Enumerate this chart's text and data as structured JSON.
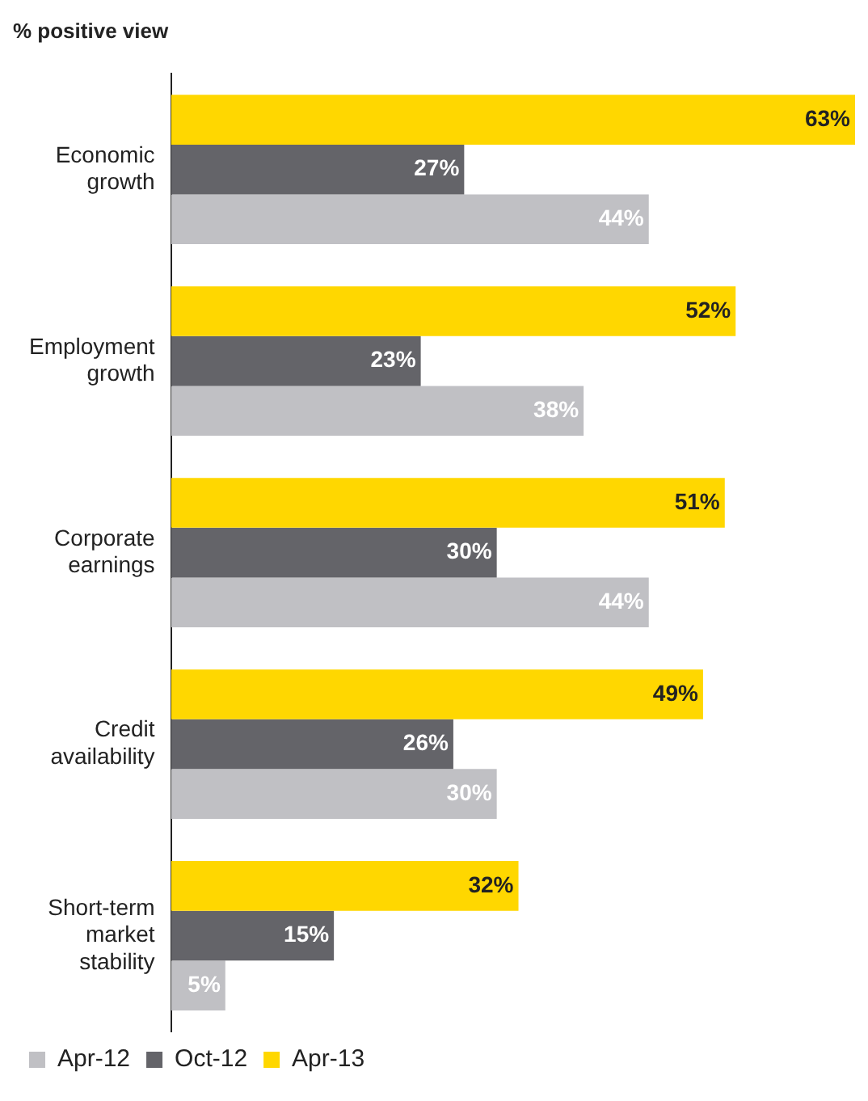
{
  "chart_data": {
    "type": "bar",
    "orientation": "horizontal",
    "title": "% positive view",
    "categories": [
      "Economic growth",
      "Employment growth",
      "Corporate earnings",
      "Credit availability",
      "Short-term market stability"
    ],
    "series": [
      {
        "name": "Apr-13",
        "color": "#ffd700",
        "values": [
          63,
          52,
          51,
          49,
          32
        ],
        "value_labels": [
          "63%",
          "52%",
          "51%",
          "49%",
          "32%"
        ]
      },
      {
        "name": "Oct-12",
        "color": "#646469",
        "values": [
          27,
          23,
          30,
          26,
          15
        ],
        "value_labels": [
          "27%",
          "23%",
          "30%",
          "26%",
          "15%"
        ]
      },
      {
        "name": "Apr-12",
        "color": "#c0c0c4",
        "values": [
          44,
          38,
          44,
          30,
          5
        ],
        "value_labels": [
          "44%",
          "38%",
          "44%",
          "30%",
          "5%"
        ]
      }
    ],
    "legend": "bottom left",
    "grid": false,
    "tick_labels": "y"
  }
}
